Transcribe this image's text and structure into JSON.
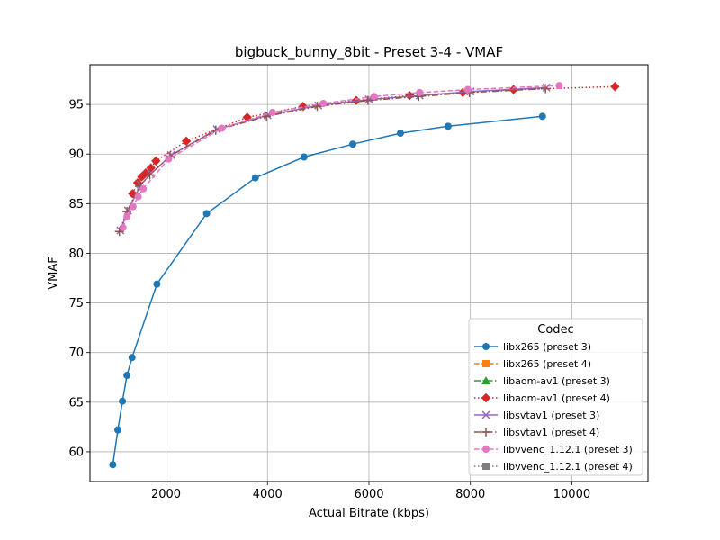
{
  "chart_data": {
    "type": "line",
    "title": "bigbuck_bunny_8bit - Preset 3-4 - VMAF",
    "xlabel": "Actual Bitrate (kbps)",
    "ylabel": "VMAF",
    "xlim": [
      500,
      11500
    ],
    "ylim": [
      57,
      99
    ],
    "xticks": [
      2000,
      4000,
      6000,
      8000,
      10000
    ],
    "yticks": [
      60,
      65,
      70,
      75,
      80,
      85,
      90,
      95
    ],
    "grid": true,
    "legend": {
      "title": "Codec",
      "placement": "lower-right"
    },
    "series": [
      {
        "name": "libx265 (preset 3)",
        "color": "#1f77b4",
        "marker": "circle",
        "dash": "solid",
        "x": [
          950,
          1050,
          1140,
          1230,
          1330,
          1820,
          2800,
          3760,
          4720,
          5680,
          6620,
          7560,
          9420
        ],
        "y": [
          58.7,
          62.2,
          65.1,
          67.7,
          69.5,
          76.9,
          84.0,
          87.6,
          89.7,
          91.0,
          92.1,
          92.8,
          93.8
        ]
      },
      {
        "name": "libx265 (preset 4)",
        "color": "#ff7f0e",
        "marker": "square",
        "dash": "dashed",
        "x": [],
        "y": []
      },
      {
        "name": "libaom-av1 (preset 3)",
        "color": "#2ca02c",
        "marker": "triangle",
        "dash": "dashdot",
        "x": [],
        "y": []
      },
      {
        "name": "libaom-av1 (preset 4)",
        "color": "#d62728",
        "marker": "diamond",
        "dash": "dotted",
        "x": [
          1340,
          1440,
          1520,
          1600,
          1700,
          1800,
          2400,
          3600,
          4700,
          5750,
          6800,
          7850,
          8850,
          10850
        ],
        "y": [
          86.0,
          87.1,
          87.7,
          88.1,
          88.6,
          89.3,
          91.3,
          93.7,
          94.8,
          95.4,
          95.9,
          96.2,
          96.5,
          96.8
        ]
      },
      {
        "name": "libsvtav1 (preset 3)",
        "color": "#9467bd",
        "marker": "x",
        "dash": "solid",
        "x": [
          1100,
          1250,
          1500,
          1700,
          2100,
          3000,
          4000,
          5000,
          6000,
          7000,
          8000,
          9500
        ],
        "y": [
          82.3,
          84.3,
          86.9,
          88.0,
          89.9,
          92.5,
          93.9,
          94.9,
          95.5,
          95.9,
          96.3,
          96.7
        ]
      },
      {
        "name": "libsvtav1 (preset 4)",
        "color": "#8c564b",
        "marker": "plus",
        "dash": "dashdot",
        "x": [
          1080,
          1230,
          1480,
          1680,
          2080,
          2980,
          3980,
          4980,
          5980,
          6980,
          7980,
          9480
        ],
        "y": [
          82.2,
          84.2,
          86.8,
          87.9,
          89.8,
          92.4,
          93.8,
          94.8,
          95.4,
          95.8,
          96.2,
          96.6
        ]
      },
      {
        "name": "libvvenc_1.12.1 (preset 3)",
        "color": "#e377c2",
        "marker": "circle",
        "dash": "dashed",
        "x": [
          1150,
          1230,
          1350,
          1450,
          1550,
          2050,
          3100,
          4100,
          5100,
          6100,
          7000,
          7950,
          9750
        ],
        "y": [
          82.6,
          83.7,
          84.7,
          85.7,
          86.5,
          89.5,
          92.6,
          94.2,
          95.1,
          95.8,
          96.2,
          96.5,
          96.9
        ]
      },
      {
        "name": "libvvenc_1.12.1 (preset 4)",
        "color": "#7f7f7f",
        "marker": "square",
        "dash": "dotted",
        "x": [],
        "y": []
      }
    ]
  }
}
